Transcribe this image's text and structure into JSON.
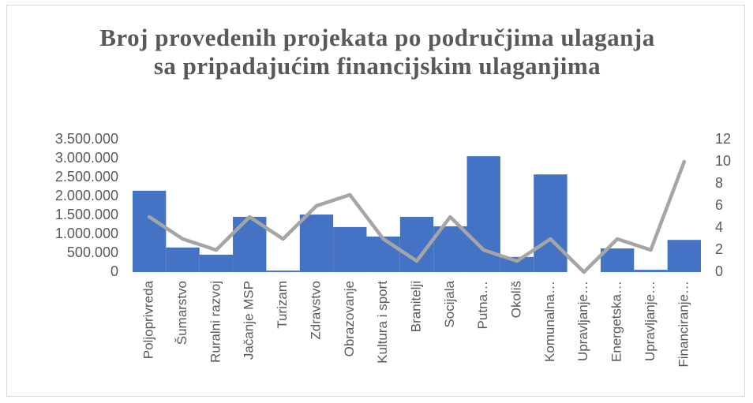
{
  "chart_data": {
    "type": "combo",
    "title": "Broj provedenih projekata po područjima ulaganja sa pripadajućim financijskim ulaganjima",
    "categories": [
      "Poljoprivreda",
      "Šumarstvo",
      "Ruralni razvoj",
      "Jačanje MSP",
      "Turizam",
      "Zdravstvo",
      "Obrazovanje",
      "Kultura i sport",
      "Branitelji",
      "Socijala",
      "Putna…",
      "Okoliš",
      "Komunalna…",
      "Upravljanje…",
      "Energetska…",
      "Upravljanje…",
      "Financiranje…"
    ],
    "series": [
      {
        "type": "bar",
        "color": "#4472c4",
        "values": [
          2150000,
          650000,
          460000,
          1460000,
          40000,
          1520000,
          1190000,
          940000,
          1460000,
          1210000,
          3060000,
          400000,
          2580000,
          0,
          625000,
          60000,
          850000
        ]
      },
      {
        "type": "line",
        "axis": "y2",
        "color": "#a5a5a5",
        "values": [
          5,
          3,
          2,
          5,
          3,
          6,
          7,
          3,
          1,
          5,
          2,
          1,
          3,
          0,
          3,
          2,
          10
        ]
      }
    ],
    "ylim": [
      0,
      3500000
    ],
    "yticks": [
      0,
      {
        "value": 500000,
        "label": "500.000"
      },
      {
        "value": 1000000,
        "label": "1.000.000"
      },
      {
        "value": 1500000,
        "label": "1.500.000"
      },
      {
        "value": 2000000,
        "label": "2.000.000"
      },
      {
        "value": 2500000,
        "label": "2.500.000"
      },
      {
        "value": 3000000,
        "label": "3.000.000"
      },
      {
        "value": 3500000,
        "label": "3.500.000"
      }
    ],
    "y2lim": [
      0,
      12
    ],
    "y2ticks": [
      0,
      2,
      4,
      6,
      8,
      10,
      12
    ]
  }
}
